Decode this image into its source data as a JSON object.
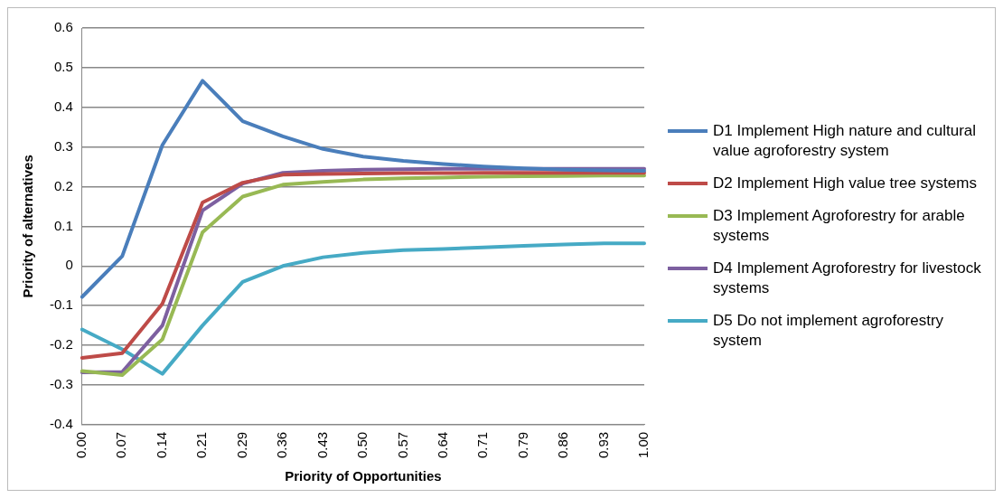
{
  "chart_data": {
    "type": "line",
    "xlabel": "Priority of Opportunities",
    "ylabel": "Priority of alternatives",
    "categories": [
      "0.00",
      "0.07",
      "0.14",
      "0.21",
      "0.29",
      "0.36",
      "0.43",
      "0.50",
      "0.57",
      "0.64",
      "0.71",
      "0.79",
      "0.86",
      "0.93",
      "1.00"
    ],
    "ylim": [
      -0.4,
      0.6
    ],
    "yticks": [
      -0.4,
      -0.3,
      -0.2,
      -0.1,
      0,
      0.1,
      0.2,
      0.3,
      0.4,
      0.5,
      0.6
    ],
    "grid": "y",
    "legend": "right",
    "marker": "none",
    "line_style": "solid",
    "series": [
      {
        "name": "D1 Implement High nature and cultural value agroforestry system",
        "color": "#4a7ebb",
        "values": [
          -0.078,
          0.025,
          0.305,
          0.467,
          0.365,
          0.327,
          0.295,
          0.276,
          0.265,
          0.257,
          0.251,
          0.246,
          0.243,
          0.241,
          0.24
        ]
      },
      {
        "name": "D2 Implement High value tree systems",
        "color": "#be4b48",
        "values": [
          -0.232,
          -0.22,
          -0.095,
          0.16,
          0.21,
          0.23,
          0.232,
          0.233,
          0.234,
          0.234,
          0.235,
          0.235,
          0.235,
          0.235,
          0.235
        ]
      },
      {
        "name": "D3 Implement Agroforestry for arable systems",
        "color": "#98b954",
        "values": [
          -0.265,
          -0.275,
          -0.185,
          0.085,
          0.175,
          0.205,
          0.212,
          0.218,
          0.221,
          0.223,
          0.225,
          0.226,
          0.227,
          0.228,
          0.228
        ]
      },
      {
        "name": "D4 Implement Agroforestry for livestock systems",
        "color": "#7d60a0",
        "values": [
          -0.268,
          -0.267,
          -0.15,
          0.14,
          0.208,
          0.235,
          0.24,
          0.243,
          0.244,
          0.245,
          0.245,
          0.245,
          0.245,
          0.245,
          0.245
        ]
      },
      {
        "name": "D5 Do not implement agroforestry system",
        "color": "#46aac5",
        "values": [
          -0.16,
          -0.21,
          -0.272,
          -0.15,
          -0.04,
          0,
          0.022,
          0.033,
          0.04,
          0.043,
          0.047,
          0.051,
          0.054,
          0.057,
          0.057
        ]
      }
    ]
  }
}
